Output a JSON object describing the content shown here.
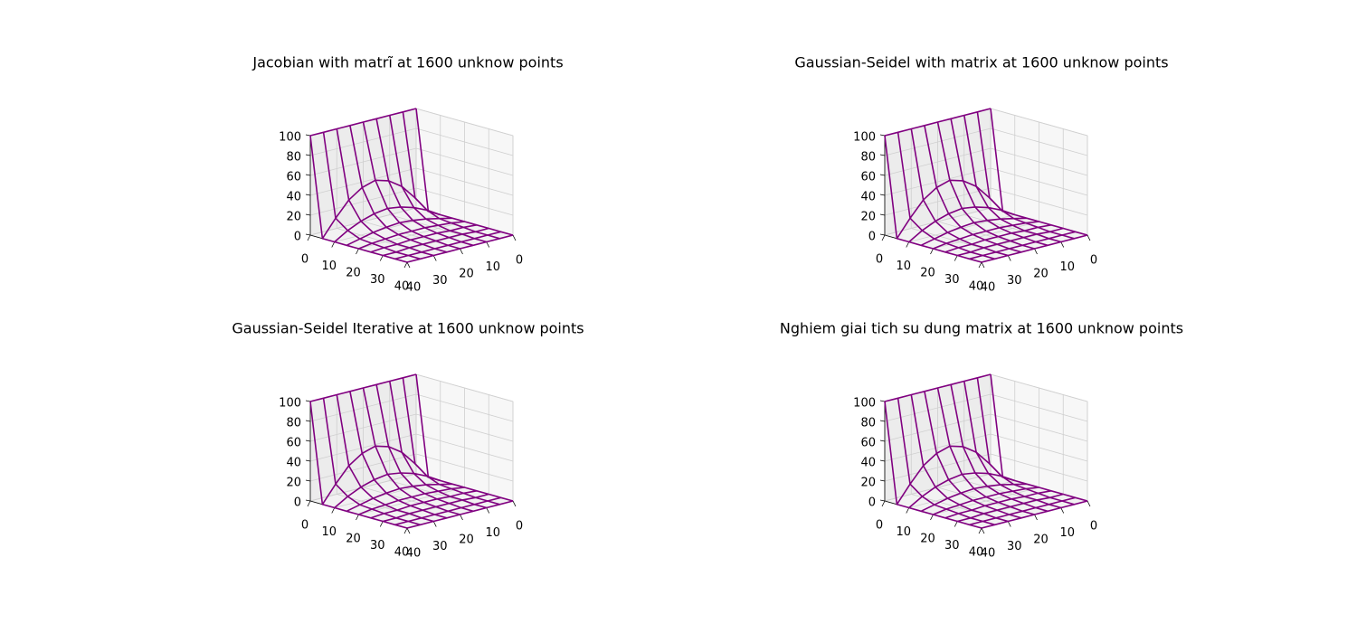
{
  "chart_data": [
    {
      "type": "surface3d",
      "title": "Jacobian with matrĩ at 1600 unknow points",
      "color": "#800080",
      "grid": true,
      "x": [
        0,
        5,
        10,
        15,
        20,
        25,
        30,
        35,
        40
      ],
      "y": [
        0,
        5,
        10,
        15,
        20,
        25,
        30,
        35,
        40
      ],
      "z": [
        [
          100,
          100,
          100,
          100,
          100,
          100,
          100,
          100,
          100
        ],
        [
          0,
          17,
          32,
          41,
          45,
          41,
          32,
          17,
          0
        ],
        [
          0,
          8,
          14,
          18,
          20,
          18,
          14,
          8,
          0
        ],
        [
          0,
          3,
          6,
          8,
          9,
          8,
          6,
          3,
          0
        ],
        [
          0,
          2,
          3,
          4,
          4,
          4,
          3,
          2,
          0
        ],
        [
          0,
          1,
          1,
          2,
          2,
          2,
          1,
          1,
          0
        ],
        [
          0,
          0,
          1,
          1,
          1,
          1,
          1,
          0,
          0
        ],
        [
          0,
          0,
          0,
          0,
          0,
          0,
          0,
          0,
          0
        ],
        [
          0,
          0,
          0,
          0,
          0,
          0,
          0,
          0,
          0
        ]
      ],
      "xlim": [
        0,
        40
      ],
      "ylim": [
        0,
        40
      ],
      "zlim": [
        0,
        100
      ],
      "xticks": [
        0,
        10,
        20,
        30,
        40
      ],
      "yticks": [
        0,
        10,
        20,
        30,
        40
      ],
      "zticks": [
        0,
        20,
        40,
        60,
        80,
        100
      ]
    },
    {
      "type": "surface3d",
      "title": "Gaussian-Seidel with matrix at 1600 unknow points",
      "color": "#800080",
      "grid": true,
      "x": [
        0,
        5,
        10,
        15,
        20,
        25,
        30,
        35,
        40
      ],
      "y": [
        0,
        5,
        10,
        15,
        20,
        25,
        30,
        35,
        40
      ],
      "z": [
        [
          100,
          100,
          100,
          100,
          100,
          100,
          100,
          100,
          100
        ],
        [
          0,
          17,
          32,
          41,
          45,
          41,
          32,
          17,
          0
        ],
        [
          0,
          8,
          14,
          18,
          20,
          18,
          14,
          8,
          0
        ],
        [
          0,
          3,
          6,
          8,
          9,
          8,
          6,
          3,
          0
        ],
        [
          0,
          2,
          3,
          4,
          4,
          4,
          3,
          2,
          0
        ],
        [
          0,
          1,
          1,
          2,
          2,
          2,
          1,
          1,
          0
        ],
        [
          0,
          0,
          1,
          1,
          1,
          1,
          1,
          0,
          0
        ],
        [
          0,
          0,
          0,
          0,
          0,
          0,
          0,
          0,
          0
        ],
        [
          0,
          0,
          0,
          0,
          0,
          0,
          0,
          0,
          0
        ]
      ],
      "xlim": [
        0,
        40
      ],
      "ylim": [
        0,
        40
      ],
      "zlim": [
        0,
        100
      ],
      "xticks": [
        0,
        10,
        20,
        30,
        40
      ],
      "yticks": [
        0,
        10,
        20,
        30,
        40
      ],
      "zticks": [
        0,
        20,
        40,
        60,
        80,
        100
      ]
    },
    {
      "type": "surface3d",
      "title": "Gaussian-Seidel Iterative at 1600 unknow points",
      "color": "#800080",
      "grid": true,
      "x": [
        0,
        5,
        10,
        15,
        20,
        25,
        30,
        35,
        40
      ],
      "y": [
        0,
        5,
        10,
        15,
        20,
        25,
        30,
        35,
        40
      ],
      "z": [
        [
          100,
          100,
          100,
          100,
          100,
          100,
          100,
          100,
          100
        ],
        [
          0,
          17,
          32,
          41,
          45,
          41,
          32,
          17,
          0
        ],
        [
          0,
          8,
          14,
          18,
          20,
          18,
          14,
          8,
          0
        ],
        [
          0,
          3,
          6,
          8,
          9,
          8,
          6,
          3,
          0
        ],
        [
          0,
          2,
          3,
          4,
          4,
          4,
          3,
          2,
          0
        ],
        [
          0,
          1,
          1,
          2,
          2,
          2,
          1,
          1,
          0
        ],
        [
          0,
          0,
          1,
          1,
          1,
          1,
          1,
          0,
          0
        ],
        [
          0,
          0,
          0,
          0,
          0,
          0,
          0,
          0,
          0
        ],
        [
          0,
          0,
          0,
          0,
          0,
          0,
          0,
          0,
          0
        ]
      ],
      "xlim": [
        0,
        40
      ],
      "ylim": [
        0,
        40
      ],
      "zlim": [
        0,
        100
      ],
      "xticks": [
        0,
        10,
        20,
        30,
        40
      ],
      "yticks": [
        0,
        10,
        20,
        30,
        40
      ],
      "zticks": [
        0,
        20,
        40,
        60,
        80,
        100
      ]
    },
    {
      "type": "surface3d",
      "title": "Nghiem giai tich su dung matrix at 1600 unknow points",
      "color": "#800080",
      "grid": true,
      "x": [
        0,
        5,
        10,
        15,
        20,
        25,
        30,
        35,
        40
      ],
      "y": [
        0,
        5,
        10,
        15,
        20,
        25,
        30,
        35,
        40
      ],
      "z": [
        [
          100,
          100,
          100,
          100,
          100,
          100,
          100,
          100,
          100
        ],
        [
          0,
          17,
          32,
          41,
          45,
          41,
          32,
          17,
          0
        ],
        [
          0,
          8,
          14,
          18,
          20,
          18,
          14,
          8,
          0
        ],
        [
          0,
          3,
          6,
          8,
          9,
          8,
          6,
          3,
          0
        ],
        [
          0,
          2,
          3,
          4,
          4,
          4,
          3,
          2,
          0
        ],
        [
          0,
          1,
          1,
          2,
          2,
          2,
          1,
          1,
          0
        ],
        [
          0,
          0,
          1,
          1,
          1,
          1,
          1,
          0,
          0
        ],
        [
          0,
          0,
          0,
          0,
          0,
          0,
          0,
          0,
          0
        ],
        [
          0,
          0,
          0,
          0,
          0,
          0,
          0,
          0,
          0
        ]
      ],
      "xlim": [
        0,
        40
      ],
      "ylim": [
        0,
        40
      ],
      "zlim": [
        0,
        100
      ],
      "xticks": [
        0,
        10,
        20,
        30,
        40
      ],
      "yticks": [
        0,
        10,
        20,
        30,
        40
      ],
      "zticks": [
        0,
        20,
        40,
        60,
        80,
        100
      ]
    }
  ]
}
